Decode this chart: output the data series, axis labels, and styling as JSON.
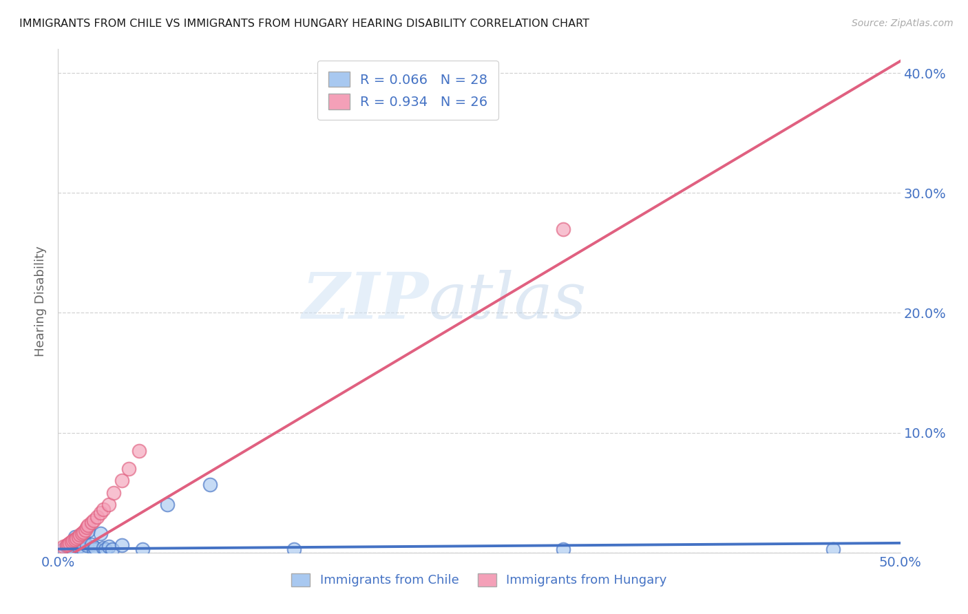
{
  "title": "IMMIGRANTS FROM CHILE VS IMMIGRANTS FROM HUNGARY HEARING DISABILITY CORRELATION CHART",
  "source": "Source: ZipAtlas.com",
  "ylabel": "Hearing Disability",
  "xlim": [
    0.0,
    0.5
  ],
  "ylim": [
    0.0,
    0.42
  ],
  "xticks": [
    0.0,
    0.1,
    0.2,
    0.3,
    0.4,
    0.5
  ],
  "xticklabels": [
    "0.0%",
    "",
    "",
    "",
    "",
    "50.0%"
  ],
  "yticks": [
    0.0,
    0.1,
    0.2,
    0.3,
    0.4
  ],
  "yticklabels_right": [
    "",
    "10.0%",
    "20.0%",
    "30.0%",
    "40.0%"
  ],
  "color_chile": "#a8c8f0",
  "color_hungary": "#f4a0b8",
  "color_chile_line": "#4472c4",
  "color_hungary_line": "#e06080",
  "color_text_blue": "#4472c4",
  "watermark_zip": "ZIP",
  "watermark_atlas": "atlas",
  "background_color": "#ffffff",
  "grid_color": "#c8c8c8",
  "chile_scatter_x": [
    0.003,
    0.005,
    0.007,
    0.008,
    0.009,
    0.01,
    0.01,
    0.012,
    0.013,
    0.015,
    0.015,
    0.017,
    0.018,
    0.02,
    0.021,
    0.022,
    0.025,
    0.027,
    0.028,
    0.03,
    0.032,
    0.038,
    0.05,
    0.065,
    0.09,
    0.14,
    0.3,
    0.46
  ],
  "chile_scatter_y": [
    0.003,
    0.005,
    0.004,
    0.007,
    0.003,
    0.008,
    0.013,
    0.005,
    0.009,
    0.012,
    0.003,
    0.006,
    0.018,
    0.007,
    0.003,
    0.004,
    0.016,
    0.004,
    0.003,
    0.005,
    0.003,
    0.006,
    0.003,
    0.04,
    0.057,
    0.003,
    0.003,
    0.003
  ],
  "hungary_scatter_x": [
    0.003,
    0.005,
    0.006,
    0.007,
    0.008,
    0.009,
    0.01,
    0.011,
    0.012,
    0.013,
    0.014,
    0.015,
    0.016,
    0.017,
    0.018,
    0.02,
    0.021,
    0.023,
    0.025,
    0.027,
    0.03,
    0.033,
    0.038,
    0.042,
    0.048,
    0.3
  ],
  "hungary_scatter_y": [
    0.005,
    0.006,
    0.007,
    0.008,
    0.009,
    0.01,
    0.011,
    0.012,
    0.013,
    0.015,
    0.016,
    0.017,
    0.019,
    0.021,
    0.023,
    0.025,
    0.027,
    0.03,
    0.033,
    0.036,
    0.04,
    0.05,
    0.06,
    0.07,
    0.085,
    0.27
  ],
  "chile_line_x": [
    0.0,
    0.5
  ],
  "chile_line_y": [
    0.003,
    0.008
  ],
  "hungary_line_x": [
    0.0,
    0.5
  ],
  "hungary_line_y": [
    -0.008,
    0.41
  ]
}
